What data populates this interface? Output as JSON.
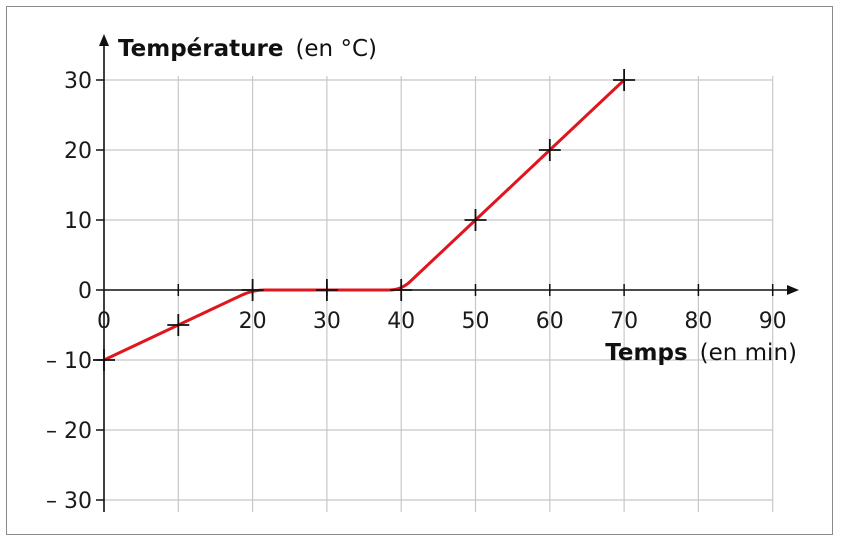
{
  "chart_data": {
    "type": "line",
    "xlabel": "Temps",
    "xlabel_unit": "(en min)",
    "ylabel": "Température",
    "ylabel_unit": "(en °C)",
    "xlim": [
      0,
      90
    ],
    "ylim": [
      -30,
      30
    ],
    "x_ticks": [
      "0",
      "20",
      "30",
      "40",
      "50",
      "60",
      "70",
      "80",
      "90"
    ],
    "x_tick_values": [
      0,
      20,
      30,
      40,
      50,
      60,
      70,
      80,
      90
    ],
    "y_ticks": [
      "30",
      "20",
      "10",
      "0",
      "– 10",
      "– 20",
      "– 30"
    ],
    "y_tick_values": [
      30,
      20,
      10,
      0,
      -10,
      -20,
      -30
    ],
    "grid": true,
    "series": [
      {
        "line_color": "#e0161e",
        "x": [
          0,
          10,
          20,
          30,
          40,
          50,
          60,
          70
        ],
        "y": [
          -10,
          -5,
          0,
          0,
          0,
          10,
          20,
          30
        ]
      }
    ],
    "marker": "plus"
  }
}
